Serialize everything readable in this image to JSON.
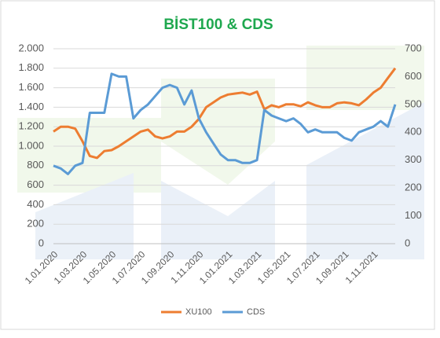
{
  "chart_data": {
    "type": "line",
    "title": "BİST100 & CDS",
    "categories": [
      "1.01.2020",
      null,
      null,
      null,
      "1.03.2020",
      null,
      null,
      null,
      "1.05.2020",
      null,
      null,
      null,
      "1.07.2020",
      null,
      null,
      null,
      "1.09.2020",
      null,
      null,
      null,
      "1.11.2020",
      null,
      null,
      null,
      "1.01.2021",
      null,
      null,
      null,
      "1.03.2021",
      null,
      null,
      null,
      "1.05.2021",
      null,
      null,
      null,
      "1.07.2021",
      null,
      null,
      null,
      "1.09.2021",
      null,
      null,
      null,
      "1.11.2021",
      null,
      null,
      null
    ],
    "series": [
      {
        "name": "XU100",
        "color": "#ed7d31",
        "axis": "y",
        "values": [
          1150,
          1200,
          1200,
          1180,
          1050,
          900,
          880,
          950,
          960,
          1000,
          1050,
          1100,
          1150,
          1170,
          1100,
          1080,
          1100,
          1150,
          1150,
          1200,
          1280,
          1400,
          1450,
          1500,
          1530,
          1540,
          1550,
          1530,
          1560,
          1380,
          1420,
          1400,
          1430,
          1430,
          1410,
          1450,
          1420,
          1400,
          1400,
          1440,
          1450,
          1440,
          1420,
          1480,
          1550,
          1600,
          1700,
          1800
        ]
      },
      {
        "name": "CDS",
        "color": "#5b9bd5",
        "axis": "y2",
        "values": [
          280,
          270,
          250,
          280,
          290,
          470,
          470,
          470,
          610,
          600,
          600,
          450,
          480,
          500,
          530,
          560,
          570,
          560,
          500,
          550,
          450,
          400,
          360,
          320,
          300,
          300,
          290,
          290,
          300,
          480,
          460,
          450,
          440,
          450,
          430,
          400,
          410,
          400,
          400,
          400,
          380,
          370,
          400,
          410,
          420,
          440,
          420,
          500
        ]
      }
    ],
    "ylim": [
      0,
      2000
    ],
    "yticks": [
      0,
      200,
      400,
      600,
      800,
      {
        "value": 1000,
        "label": "1.000"
      },
      {
        "value": 1200,
        "label": "1.200"
      },
      {
        "value": 1400,
        "label": "1.400"
      },
      {
        "value": 1600,
        "label": "1.600"
      },
      {
        "value": 1800,
        "label": "1.800"
      },
      {
        "value": 2000,
        "label": "2.000"
      }
    ],
    "y2lim": [
      0,
      700
    ],
    "y2ticks": [
      0,
      100,
      200,
      300,
      400,
      500,
      600,
      700
    ],
    "grid": true,
    "legend": "bottom"
  }
}
